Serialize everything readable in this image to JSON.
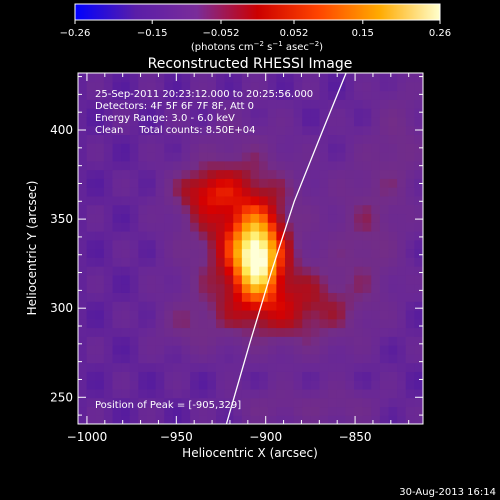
{
  "chart_data": {
    "type": "heatmap",
    "title": "Reconstructed RHESSI Image",
    "xlabel": "Heliocentric X (arcsec)",
    "ylabel": "Heliocentric Y (arcsec)",
    "xlim": [
      -1005,
      -812
    ],
    "ylim": [
      235,
      432
    ],
    "x_ticks": [
      -1000,
      -950,
      -900,
      -850
    ],
    "x_tick_labels": [
      "−1000",
      "−950",
      "−900",
      "−850"
    ],
    "y_ticks": [
      250,
      300,
      350,
      400
    ],
    "y_tick_labels": [
      "250",
      "300",
      "350",
      "400"
    ],
    "colorbar": {
      "range": [
        -0.26,
        0.26
      ],
      "ticks": [
        -0.26,
        -0.15,
        -0.052,
        0.052,
        0.15,
        0.26
      ],
      "tick_labels": [
        "−0.26",
        "−0.15",
        "−0.052",
        "0.052",
        "0.15",
        "0.26"
      ],
      "units_prefix": "(photons cm",
      "units_sup1": "−2",
      "units_mid1": " s",
      "units_sup2": "−1",
      "units_mid2": " asec",
      "units_sup3": "−2",
      "units_suffix": ")",
      "colors": [
        "#0000ff",
        "#5a1ea8",
        "#7a2c9a",
        "#cc0000",
        "#ff4400",
        "#ffaa00",
        "#ffffcc"
      ]
    },
    "annotations": [
      "25-Sep-2011 20:23:12.000 to 20:25:56.000",
      "Detectors: 4F 5F 6F 7F 8F, Att 0",
      "Energy Range: 3.0 - 6.0 keV",
      "Clean     Total counts: 8.50E+04"
    ],
    "peak_label": "Position of Peak = [-905,329]",
    "peak_position": [
      -905,
      329
    ],
    "limb_curve": [
      [
        -922,
        235
      ],
      [
        -909,
        280
      ],
      [
        -897,
        320
      ],
      [
        -884,
        360
      ],
      [
        -868,
        400
      ],
      [
        -855,
        432
      ]
    ],
    "sources": [
      {
        "x": -905,
        "y": 329,
        "sx": 9,
        "sy": 15,
        "amp": 0.26
      },
      {
        "x": -913,
        "y": 348,
        "sx": 22,
        "sy": 30,
        "amp": 0.15
      },
      {
        "x": -935,
        "y": 366,
        "sx": 12,
        "sy": 9,
        "amp": 0.09
      },
      {
        "x": -870,
        "y": 300,
        "sx": 20,
        "sy": 18,
        "amp": 0.06
      },
      {
        "x": -843,
        "y": 345,
        "sx": 14,
        "sy": 30,
        "amp": 0.07
      },
      {
        "x": -825,
        "y": 395,
        "sx": 10,
        "sy": 25,
        "amp": 0.05
      },
      {
        "x": -900,
        "y": 300,
        "sx": 25,
        "sy": 15,
        "amp": 0.08
      },
      {
        "x": -945,
        "y": 290,
        "sx": 12,
        "sy": 10,
        "amp": 0.05
      },
      {
        "x": -860,
        "y": 245,
        "sx": 18,
        "sy": 8,
        "amp": 0.05
      },
      {
        "x": -900,
        "y": 245,
        "sx": 15,
        "sy": 8,
        "amp": 0.04
      }
    ],
    "background": -0.09,
    "grid": false
  },
  "footer": {
    "timestamp": "30-Aug-2013 16:14"
  }
}
